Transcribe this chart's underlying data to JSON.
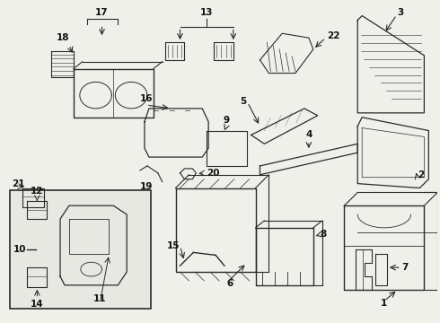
{
  "background_color": "#f0f0eb",
  "line_color": "#2a2a2a",
  "text_color": "#111111",
  "fig_width": 4.9,
  "fig_height": 3.6,
  "dpi": 100
}
